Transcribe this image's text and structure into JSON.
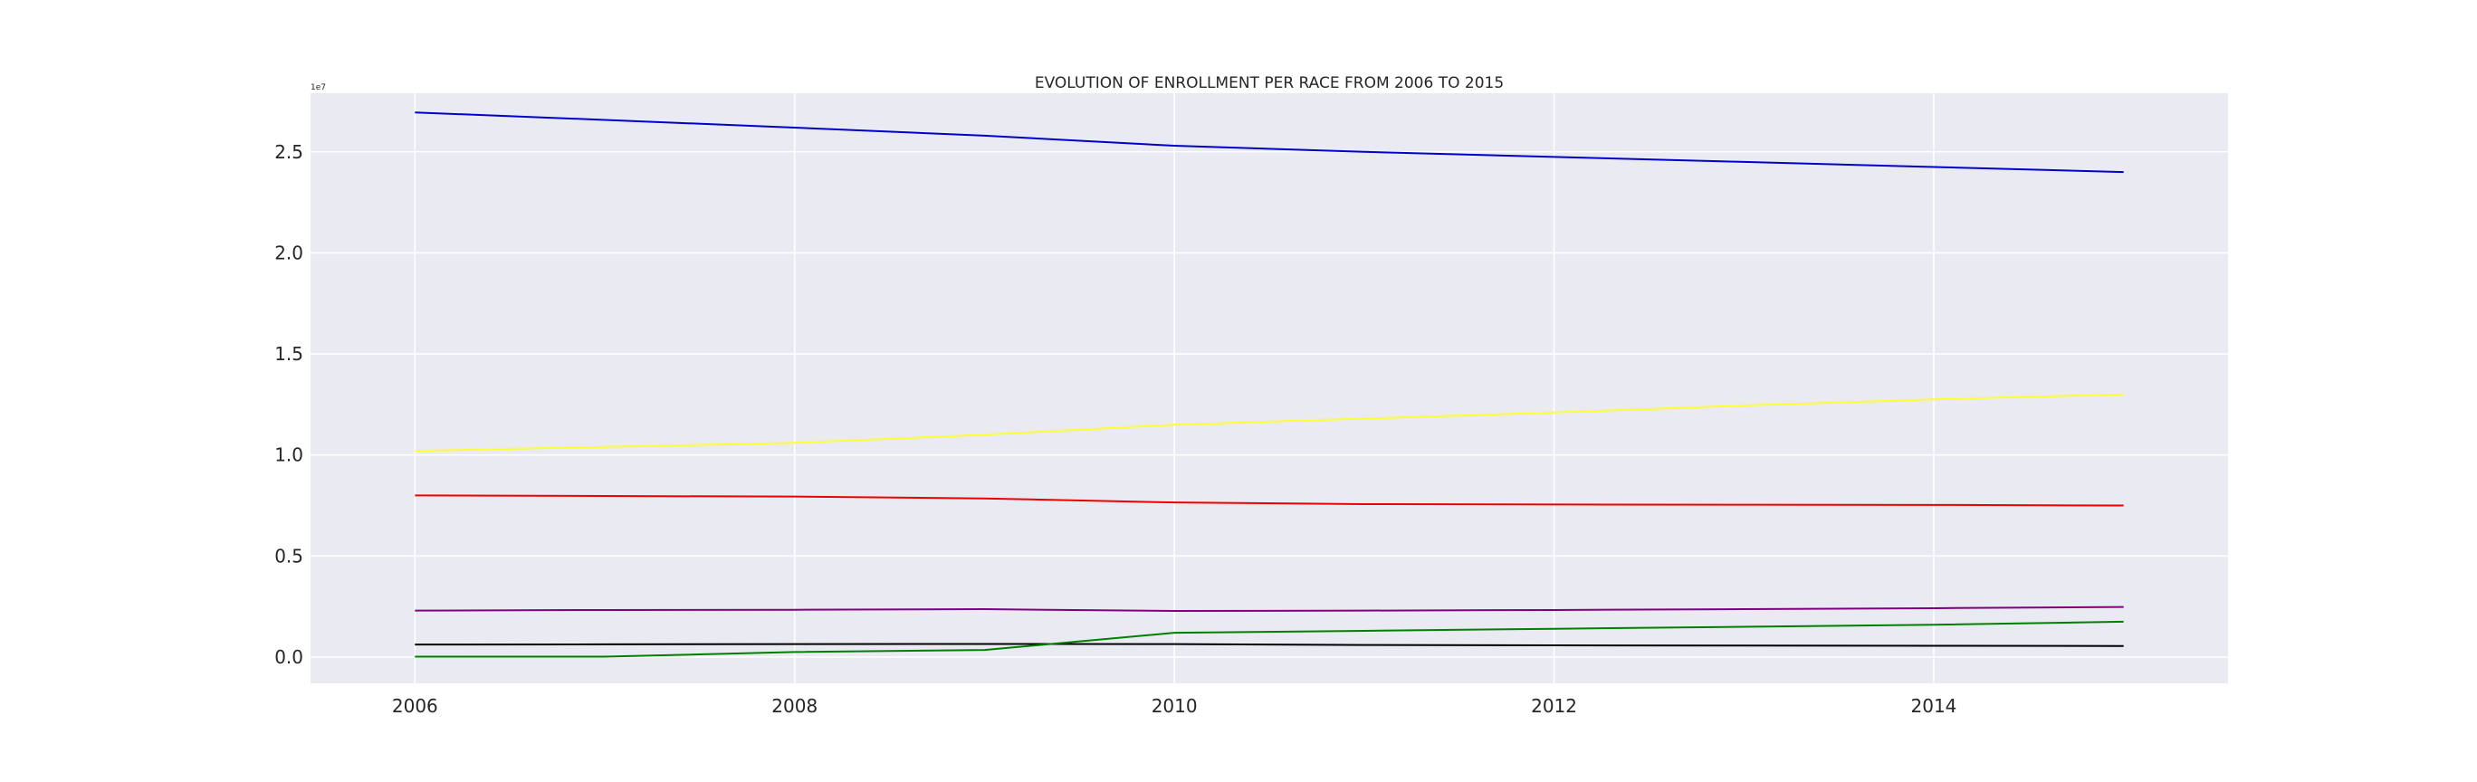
{
  "chart_data": {
    "type": "line",
    "title": "EVOLUTION OF ENROLLMENT PER RACE FROM 2006 TO 2015",
    "xlabel": "",
    "ylabel": "",
    "y_scale_note": "1e7",
    "x": [
      2006,
      2007,
      2008,
      2009,
      2010,
      2011,
      2012,
      2013,
      2014,
      2015
    ],
    "xlim": [
      2005.45,
      2015.55
    ],
    "ylim": [
      -1300000,
      27900000
    ],
    "x_ticks": [
      2006,
      2008,
      2010,
      2012,
      2014
    ],
    "x_tick_labels": [
      "2006",
      "2008",
      "2010",
      "2012",
      "2014"
    ],
    "y_ticks": [
      0,
      5000000,
      10000000,
      15000000,
      20000000,
      25000000
    ],
    "y_tick_labels": [
      "0.0",
      "0.5",
      "1.0",
      "1.5",
      "2.0",
      "2.5"
    ],
    "grid": true,
    "background": "#eaeaf2",
    "series": [
      {
        "color": "#0000cc",
        "values": [
          26950000,
          26580000,
          26200000,
          25800000,
          25300000,
          25000000,
          24750000,
          24500000,
          24250000,
          24000000
        ]
      },
      {
        "color": "#ffff33",
        "values": [
          10200000,
          10400000,
          10600000,
          11000000,
          11500000,
          11800000,
          12100000,
          12450000,
          12750000,
          13000000
        ]
      },
      {
        "color": "#ee0000",
        "values": [
          8000000,
          7970000,
          7940000,
          7850000,
          7650000,
          7570000,
          7550000,
          7540000,
          7530000,
          7500000
        ]
      },
      {
        "color": "#800080",
        "values": [
          2300000,
          2330000,
          2340000,
          2370000,
          2280000,
          2300000,
          2330000,
          2370000,
          2420000,
          2480000
        ]
      },
      {
        "color": "#000000",
        "values": [
          620000,
          630000,
          640000,
          650000,
          640000,
          600000,
          580000,
          570000,
          560000,
          550000
        ]
      },
      {
        "color": "#008000",
        "values": [
          20000,
          20000,
          250000,
          350000,
          1200000,
          1300000,
          1400000,
          1500000,
          1600000,
          1750000
        ]
      }
    ]
  }
}
